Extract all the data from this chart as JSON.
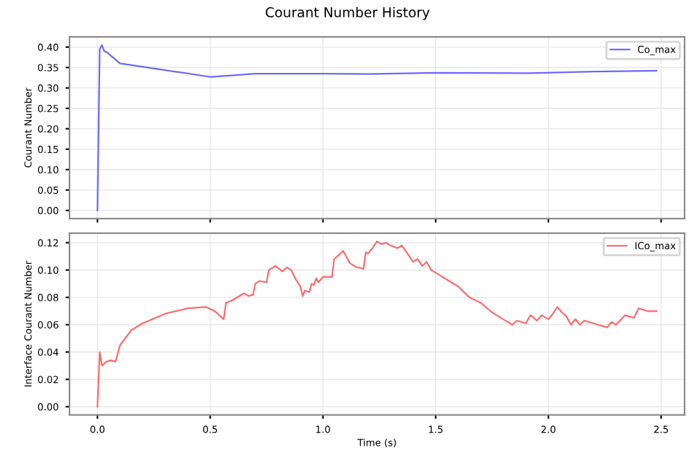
{
  "chart_data": [
    {
      "type": "line",
      "title": "Courant Number History",
      "ylabel": "Courant Number",
      "xlim": [
        -0.124,
        2.604
      ],
      "xticks": [
        0,
        0.5,
        1.0,
        1.5,
        2.0,
        2.5
      ],
      "ylim": [
        -0.02,
        0.425
      ],
      "yticks": [
        {
          "value": 0,
          "label": "0.00"
        },
        {
          "value": 0.05,
          "label": "0.05"
        },
        {
          "value": 0.1,
          "label": "0.10"
        },
        {
          "value": 0.15,
          "label": "0.15"
        },
        {
          "value": 0.2,
          "label": "0.20"
        },
        {
          "value": 0.25,
          "label": "0.25"
        },
        {
          "value": 0.3,
          "label": "0.30"
        },
        {
          "value": 0.35,
          "label": "0.35"
        },
        {
          "value": 0.4,
          "label": "0.40"
        }
      ],
      "tick_labels": "y",
      "grid": true,
      "legend": "top right",
      "series": [
        {
          "name": "Co_max",
          "color": "#6666ff",
          "x": [
            0.0,
            0.01,
            0.02,
            0.03,
            0.04,
            0.1,
            0.2,
            0.5,
            0.7,
            1.0,
            1.2,
            1.5,
            1.9,
            2.2,
            2.48
          ],
          "values": [
            0.0,
            0.395,
            0.405,
            0.39,
            0.388,
            0.36,
            0.352,
            0.327,
            0.335,
            0.335,
            0.334,
            0.337,
            0.336,
            0.34,
            0.342
          ]
        }
      ]
    },
    {
      "type": "line",
      "xlabel": "Time (s)",
      "ylabel": "Interface Courant Number",
      "xlim": [
        -0.124,
        2.604
      ],
      "xticks": [
        {
          "value": 0,
          "label": "0.0"
        },
        0.5,
        {
          "value": 1,
          "label": "1.0"
        },
        1.5,
        {
          "value": 2,
          "label": "2.0"
        },
        2.5
      ],
      "ylim": [
        -0.006,
        0.127
      ],
      "yticks": [
        {
          "value": 0,
          "label": "0.00"
        },
        {
          "value": 0.02,
          "label": "0.02"
        },
        {
          "value": 0.04,
          "label": "0.04"
        },
        {
          "value": 0.06,
          "label": "0.06"
        },
        {
          "value": 0.08,
          "label": "0.08"
        },
        {
          "value": 0.1,
          "label": "0.10"
        },
        {
          "value": 0.12,
          "label": "0.12"
        }
      ],
      "grid": true,
      "legend": "top right",
      "series": [
        {
          "name": "ICo_max",
          "color": "#ff6666",
          "x": [
            0,
            0.01,
            0.02,
            0.04,
            0.06,
            0.08,
            0.1,
            0.15,
            0.2,
            0.3,
            0.4,
            0.48,
            0.52,
            0.56,
            0.57,
            0.6,
            0.65,
            0.67,
            0.69,
            0.7,
            0.72,
            0.75,
            0.76,
            0.79,
            0.82,
            0.84,
            0.86,
            0.88,
            0.9,
            0.91,
            0.92,
            0.94,
            0.95,
            0.96,
            0.97,
            0.98,
            1.0,
            1.04,
            1.05,
            1.07,
            1.09,
            1.12,
            1.15,
            1.18,
            1.19,
            1.2,
            1.22,
            1.24,
            1.26,
            1.28,
            1.3,
            1.33,
            1.35,
            1.38,
            1.4,
            1.42,
            1.44,
            1.46,
            1.48,
            1.5,
            1.52,
            1.55,
            1.6,
            1.65,
            1.7,
            1.75,
            1.8,
            1.84,
            1.86,
            1.9,
            1.92,
            1.95,
            1.97,
            2.0,
            2.02,
            2.04,
            2.06,
            2.08,
            2.1,
            2.12,
            2.14,
            2.16,
            2.2,
            2.26,
            2.28,
            2.3,
            2.34,
            2.38,
            2.4,
            2.44,
            2.48
          ],
          "values": [
            0,
            0.04,
            0.03,
            0.033,
            0.034,
            0.033,
            0.045,
            0.056,
            0.061,
            0.068,
            0.072,
            0.073,
            0.07,
            0.064,
            0.076,
            0.078,
            0.083,
            0.081,
            0.082,
            0.09,
            0.092,
            0.091,
            0.1,
            0.103,
            0.099,
            0.102,
            0.1,
            0.093,
            0.088,
            0.081,
            0.085,
            0.084,
            0.09,
            0.089,
            0.094,
            0.091,
            0.095,
            0.095,
            0.108,
            0.111,
            0.114,
            0.105,
            0.102,
            0.101,
            0.113,
            0.112,
            0.116,
            0.121,
            0.119,
            0.12,
            0.118,
            0.116,
            0.118,
            0.111,
            0.106,
            0.108,
            0.103,
            0.106,
            0.1,
            0.098,
            0.096,
            0.093,
            0.088,
            0.08,
            0.076,
            0.069,
            0.064,
            0.06,
            0.063,
            0.061,
            0.067,
            0.063,
            0.067,
            0.064,
            0.068,
            0.073,
            0.069,
            0.066,
            0.06,
            0.064,
            0.06,
            0.063,
            0.061,
            0.058,
            0.062,
            0.06,
            0.067,
            0.065,
            0.072,
            0.07,
            0.07
          ]
        }
      ]
    }
  ]
}
